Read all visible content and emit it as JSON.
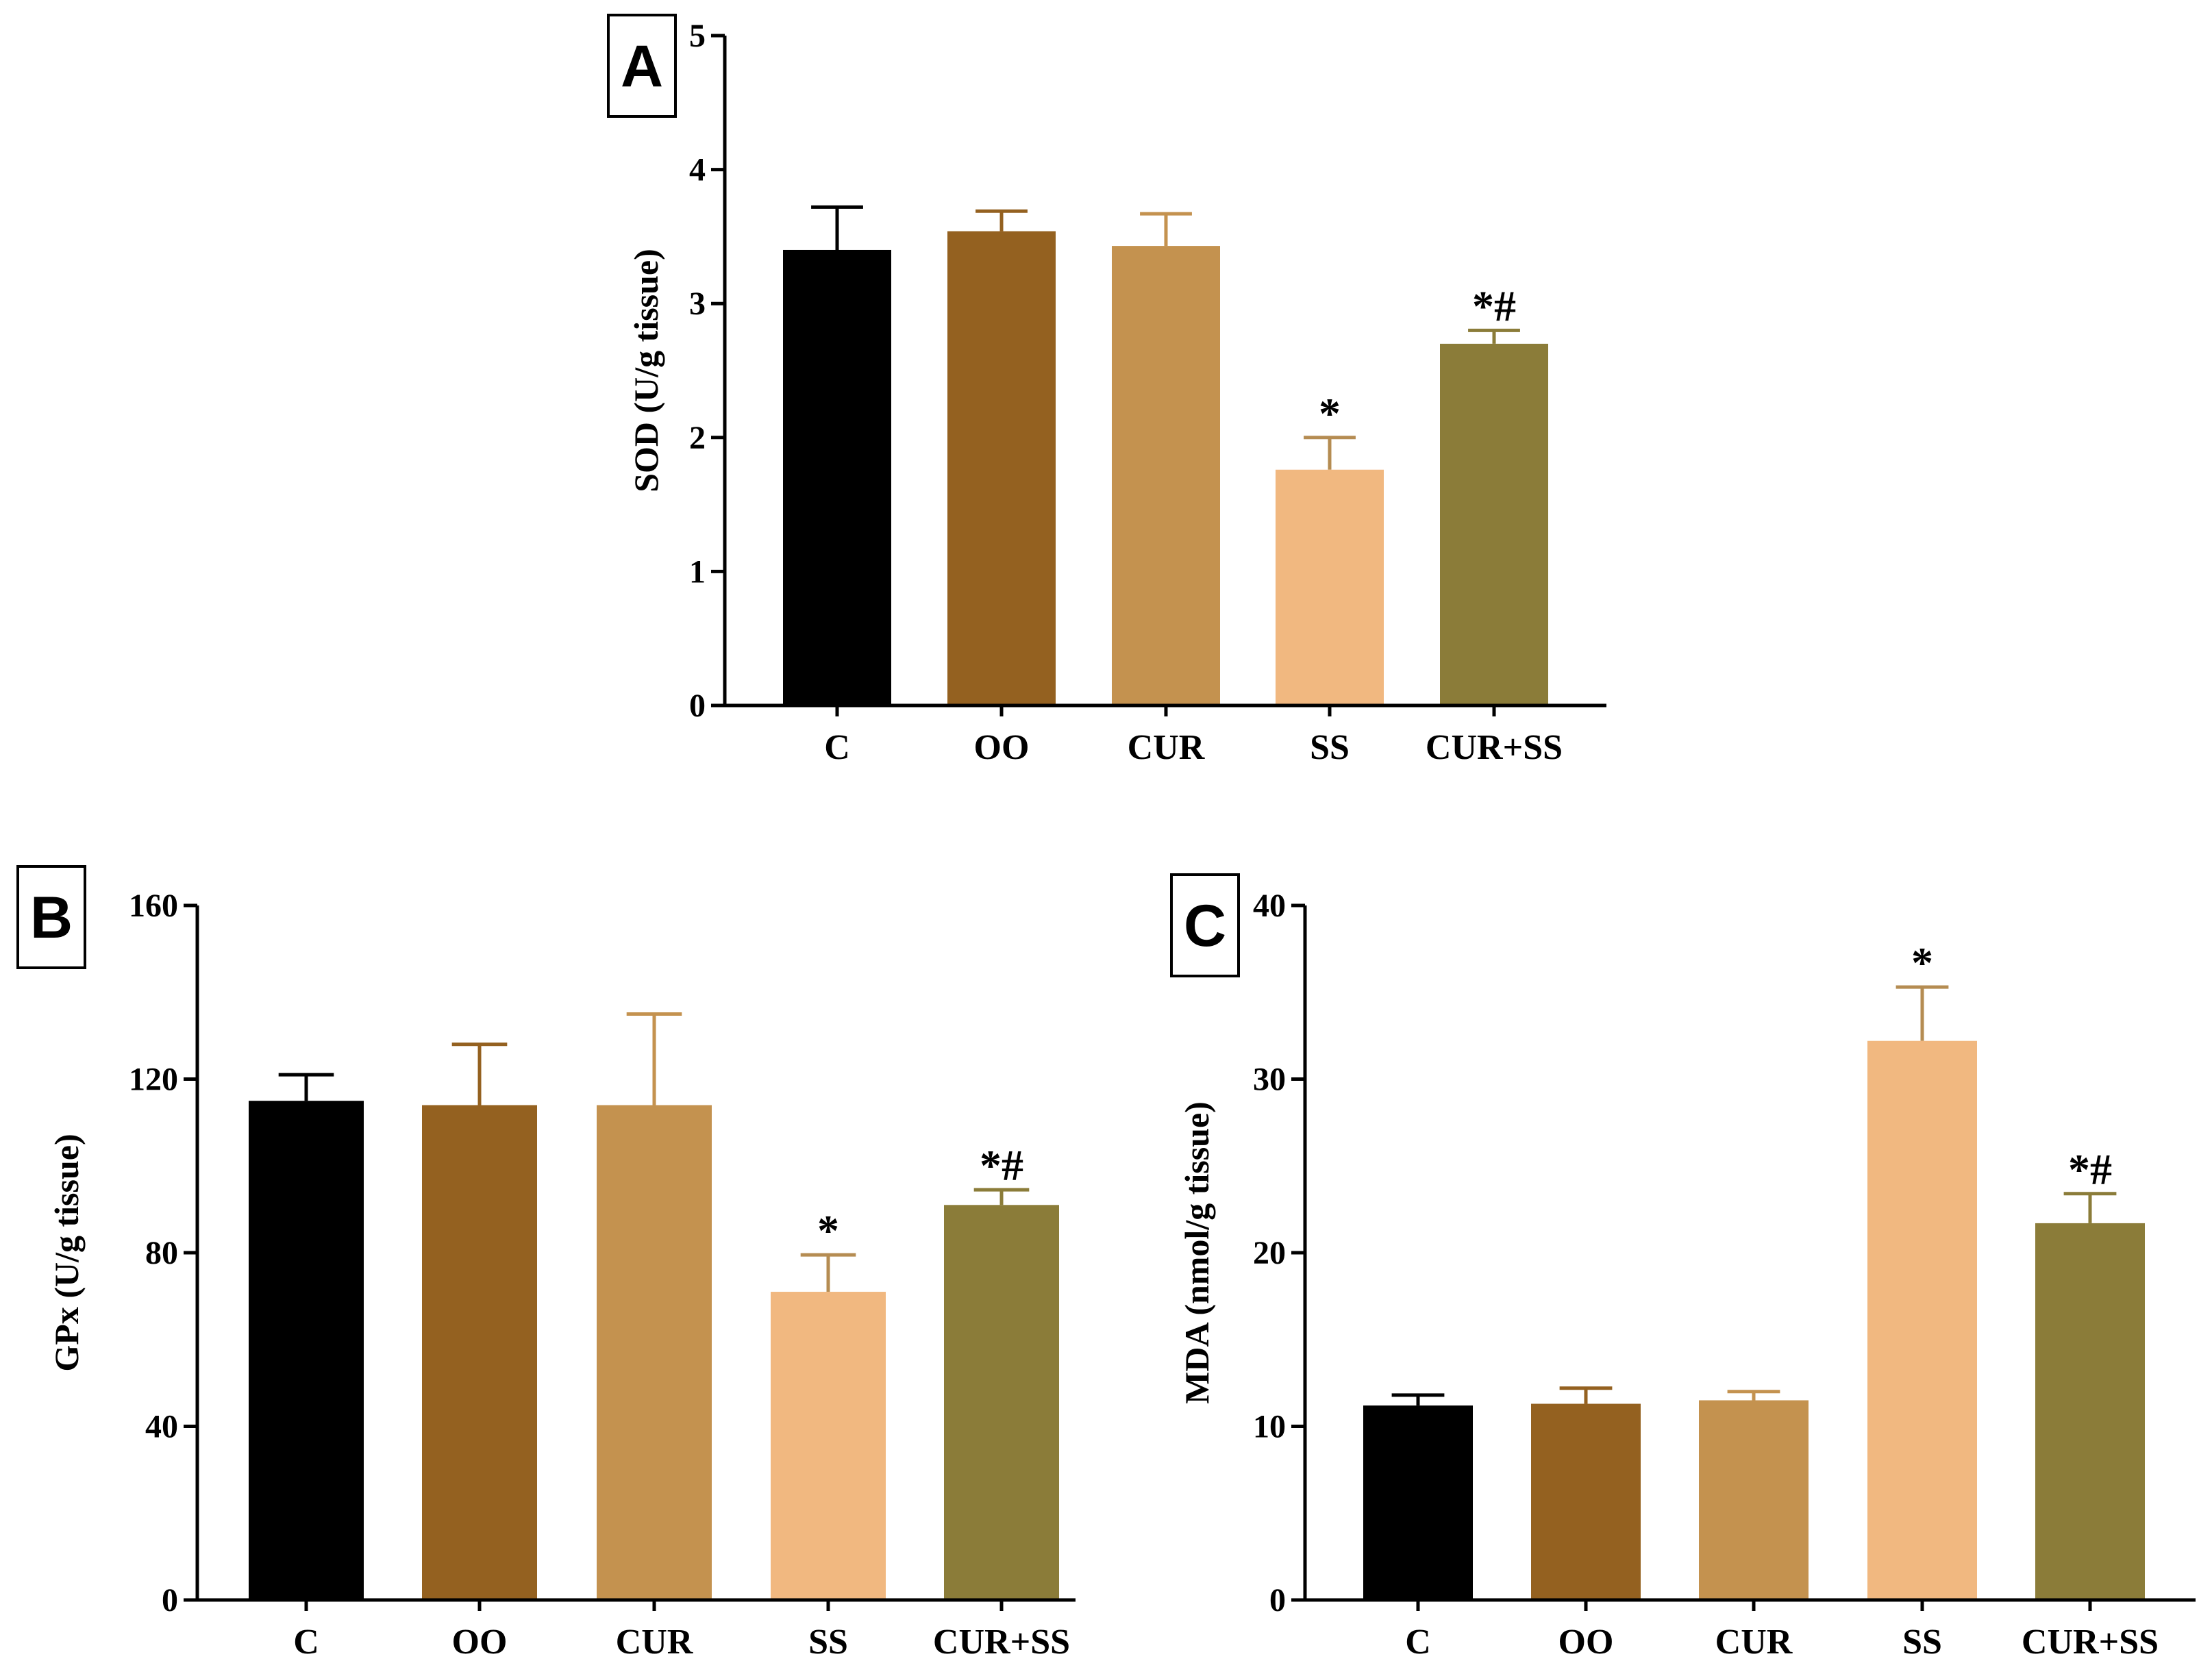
{
  "colors": {
    "bars": [
      "#000000",
      "#946120",
      "#c4924f",
      "#f1b880",
      "#8b7c39"
    ],
    "error_bars": [
      "#000000",
      "#946120",
      "#c4924f",
      "#b58c52",
      "#8b7c39"
    ]
  },
  "chart_data": [
    {
      "type": "bar",
      "panel_label": "A",
      "ylabel": "SOD (U/g tissue)",
      "xlabel": "",
      "categories": [
        "C",
        "OO",
        "CUR",
        "SS",
        "CUR+SS"
      ],
      "values": [
        3.4,
        3.54,
        3.43,
        1.76,
        2.7
      ],
      "errors": [
        0.32,
        0.15,
        0.24,
        0.24,
        0.1
      ],
      "significance": [
        "",
        "",
        "",
        "*",
        "*#"
      ],
      "ylim": [
        0,
        5
      ],
      "yticks": [
        0,
        1,
        2,
        3,
        4,
        5
      ],
      "grid": false,
      "legend": "none"
    },
    {
      "type": "bar",
      "panel_label": "B",
      "ylabel": "GPx (U/g tissue)",
      "xlabel": "",
      "categories": [
        "C",
        "OO",
        "CUR",
        "SS",
        "CUR+SS"
      ],
      "values": [
        115,
        114,
        114,
        71,
        91
      ],
      "errors": [
        6,
        14,
        21,
        8.5,
        3.5
      ],
      "significance": [
        "",
        "",
        "",
        "*",
        "*#"
      ],
      "ylim": [
        0,
        160
      ],
      "yticks": [
        0,
        40,
        80,
        120,
        160
      ],
      "grid": false,
      "legend": "none"
    },
    {
      "type": "bar",
      "panel_label": "C",
      "ylabel": "MDA (nmol/g tissue)",
      "xlabel": "",
      "categories": [
        "C",
        "OO",
        "CUR",
        "SS",
        "CUR+SS"
      ],
      "values": [
        11.2,
        11.3,
        11.5,
        32.2,
        21.7
      ],
      "errors": [
        0.6,
        0.9,
        0.5,
        3.1,
        1.7
      ],
      "significance": [
        "",
        "",
        "",
        "*",
        "*#"
      ],
      "ylim": [
        0,
        40
      ],
      "yticks": [
        0,
        10,
        20,
        30,
        40
      ],
      "grid": false,
      "legend": "none"
    }
  ]
}
